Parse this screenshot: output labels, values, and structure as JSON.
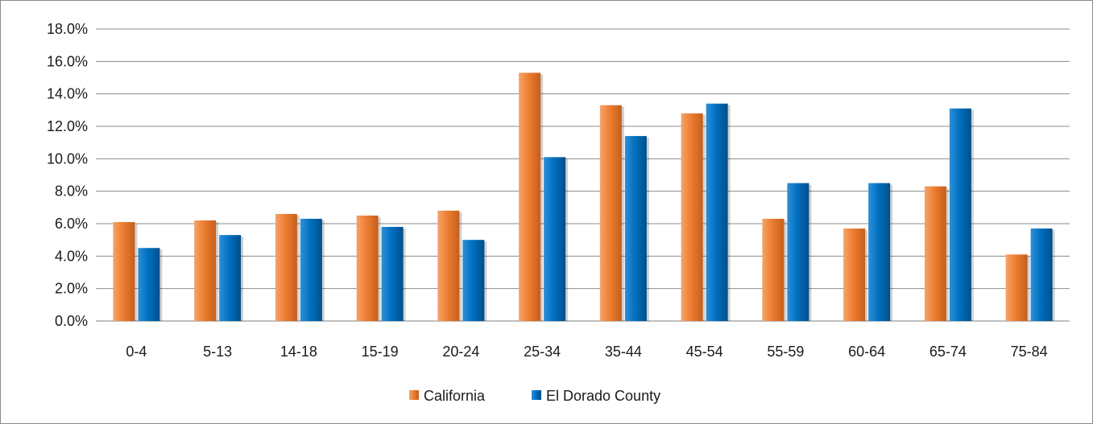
{
  "chart_data": {
    "type": "bar",
    "categories": [
      "0-4",
      "5-13",
      "14-18",
      "15-19",
      "20-24",
      "25-34",
      "35-44",
      "45-54",
      "55-59",
      "60-64",
      "65-74",
      "75-84"
    ],
    "series": [
      {
        "name": "California",
        "values": [
          6.1,
          6.2,
          6.6,
          6.5,
          6.8,
          15.3,
          13.3,
          12.8,
          6.3,
          5.7,
          8.3,
          4.1
        ],
        "color": "#ed7d31"
      },
      {
        "name": "El Dorado County",
        "values": [
          4.5,
          5.3,
          6.3,
          5.8,
          5.0,
          10.1,
          11.4,
          13.4,
          8.5,
          8.5,
          13.1,
          5.7
        ],
        "color": "#0070c0"
      }
    ],
    "yticks": [
      "0.0%",
      "2.0%",
      "4.0%",
      "6.0%",
      "8.0%",
      "10.0%",
      "12.0%",
      "14.0%",
      "16.0%",
      "18.0%"
    ],
    "ylim": [
      0,
      18
    ],
    "grid": true,
    "legend_position": "bottom",
    "title": "",
    "xlabel": "",
    "ylabel": ""
  }
}
